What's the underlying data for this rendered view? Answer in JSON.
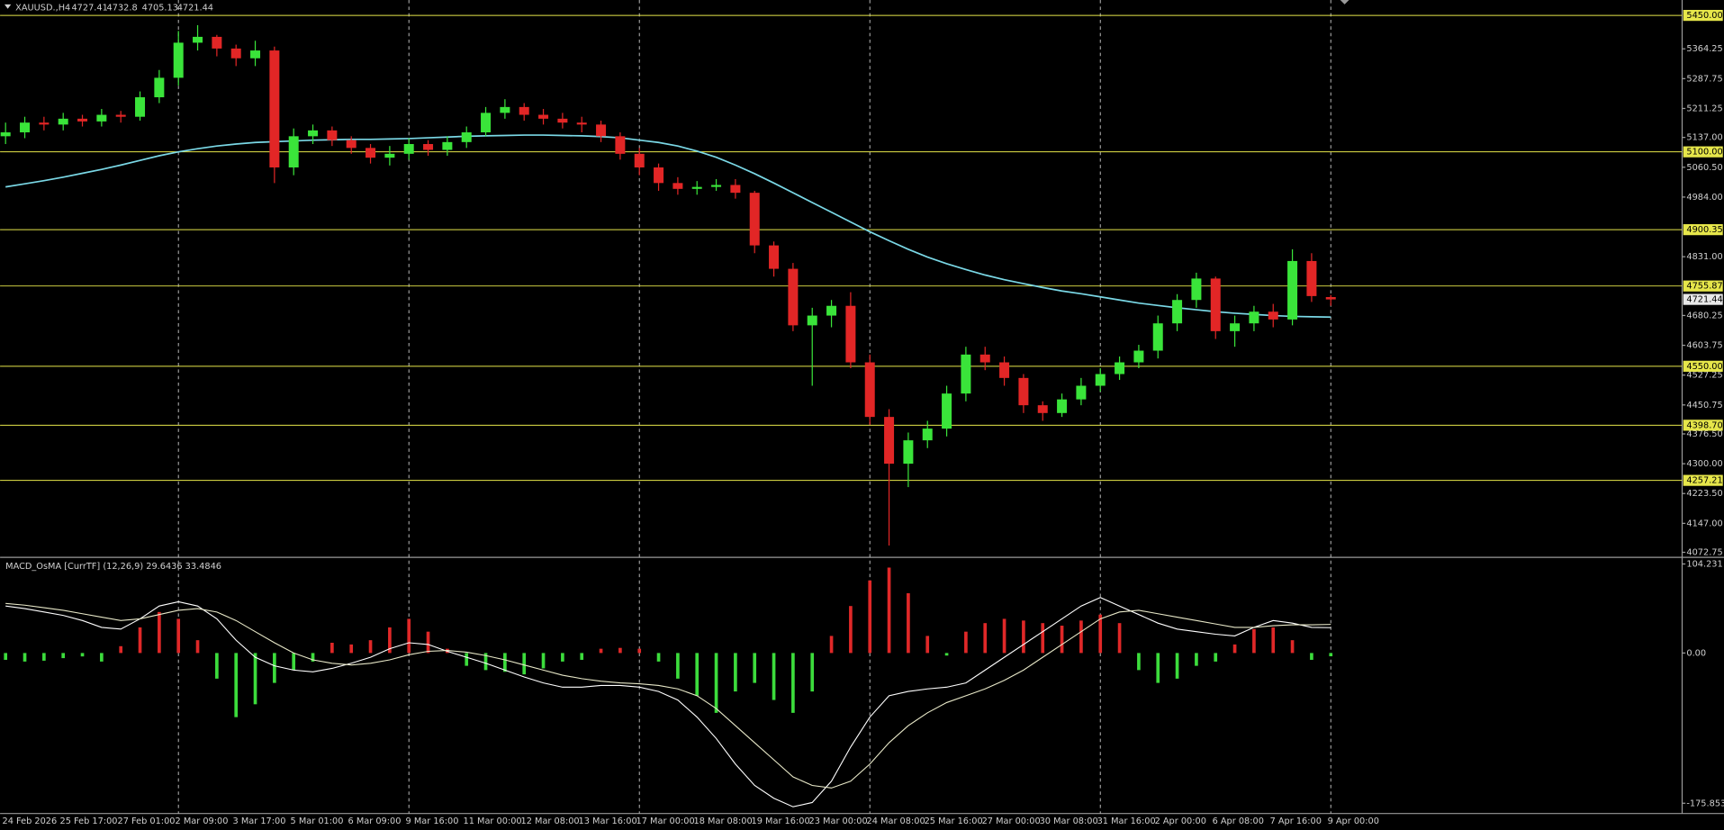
{
  "chart_data": [
    {
      "type": "candlestick",
      "title": "XAUUSD.,H4",
      "categories": [
        "24 Feb 2026",
        null,
        null,
        "25 Feb 17:00",
        null,
        null,
        "27 Feb 01:00",
        null,
        null,
        "2 Mar 09:00",
        null,
        null,
        "3 Mar 17:00",
        null,
        null,
        "5 Mar 01:00",
        null,
        null,
        "6 Mar 09:00",
        null,
        null,
        "9 Mar 16:00",
        null,
        null,
        "11 Mar 00:00",
        null,
        null,
        "12 Mar 08:00",
        null,
        null,
        "13 Mar 16:00",
        null,
        null,
        "17 Mar 00:00",
        null,
        null,
        "18 Mar 08:00",
        null,
        null,
        "19 Mar 16:00",
        null,
        null,
        "23 Mar 00:00",
        null,
        null,
        "24 Mar 08:00",
        null,
        null,
        "25 Mar 16:00",
        null,
        null,
        "27 Mar 00:00",
        null,
        null,
        "30 Mar 08:00",
        null,
        null,
        "31 Mar 16:00",
        null,
        null,
        "2 Apr 00:00",
        null,
        null,
        "6 Apr 08:00",
        null,
        null,
        "7 Apr 16:00",
        null,
        null,
        "9 Apr 00:00"
      ],
      "open": [
        5140,
        5150,
        5175,
        5170,
        5185,
        5178,
        5195,
        5190,
        5240,
        5290,
        5380,
        5395,
        5365,
        5340,
        5360,
        5060,
        5140,
        5155,
        5130,
        5110,
        5085,
        5095,
        5120,
        5105,
        5125,
        5150,
        5200,
        5215,
        5195,
        5185,
        5175,
        5170,
        5140,
        5095,
        5060,
        5020,
        5005,
        5010,
        5015,
        4995,
        4860,
        4800,
        4655,
        4680,
        4705,
        4560,
        4420,
        4300,
        4360,
        4390,
        4480,
        4580,
        4560,
        4520,
        4450,
        4430,
        4465,
        4500,
        4530,
        4560,
        4590,
        4660,
        4720,
        4775,
        4640,
        4660,
        4690,
        4670,
        4820,
        4727.41
      ],
      "high": [
        5175,
        5190,
        5190,
        5200,
        5195,
        5210,
        5205,
        5255,
        5310,
        5410,
        5425,
        5400,
        5375,
        5385,
        5370,
        5160,
        5170,
        5165,
        5140,
        5120,
        5115,
        5135,
        5130,
        5140,
        5165,
        5215,
        5235,
        5225,
        5210,
        5200,
        5190,
        5180,
        5150,
        5110,
        5070,
        5035,
        5025,
        5030,
        5030,
        5000,
        4870,
        4815,
        4700,
        4720,
        4740,
        4580,
        4440,
        4380,
        4410,
        4500,
        4600,
        4600,
        4575,
        4530,
        4460,
        4480,
        4520,
        4545,
        4575,
        4605,
        4680,
        4735,
        4790,
        4780,
        4680,
        4705,
        4710,
        4850,
        4840,
        4732.8
      ],
      "low": [
        5120,
        5135,
        5155,
        5155,
        5165,
        5165,
        5175,
        5180,
        5225,
        5270,
        5360,
        5345,
        5320,
        5320,
        5020,
        5040,
        5120,
        5115,
        5095,
        5070,
        5065,
        5080,
        5090,
        5090,
        5110,
        5140,
        5185,
        5180,
        5170,
        5160,
        5150,
        5125,
        5080,
        5040,
        5000,
        4990,
        4990,
        5000,
        4980,
        4840,
        4780,
        4640,
        4500,
        4650,
        4545,
        4400,
        4090,
        4240,
        4340,
        4370,
        4460,
        4540,
        4500,
        4430,
        4410,
        4420,
        4450,
        4485,
        4515,
        4545,
        4570,
        4640,
        4700,
        4620,
        4600,
        4640,
        4650,
        4655,
        4715,
        4705.13
      ],
      "close": [
        5150,
        5175,
        5170,
        5185,
        5178,
        5195,
        5190,
        5240,
        5290,
        5380,
        5395,
        5365,
        5340,
        5360,
        5060,
        5140,
        5155,
        5130,
        5110,
        5085,
        5095,
        5120,
        5105,
        5125,
        5150,
        5200,
        5215,
        5195,
        5185,
        5175,
        5170,
        5140,
        5095,
        5060,
        5020,
        5005,
        5010,
        5015,
        4995,
        4860,
        4800,
        4655,
        4680,
        4705,
        4560,
        4420,
        4300,
        4360,
        4390,
        4480,
        4580,
        4560,
        4520,
        4450,
        4430,
        4465,
        4500,
        4530,
        4560,
        4590,
        4660,
        4720,
        4775,
        4640,
        4660,
        4690,
        4670,
        4820,
        4730,
        4721.44
      ],
      "up_color": "#3ae43a",
      "down_color": "#e22626",
      "overlay": {
        "color": "#7ad8e6",
        "values": [
          5010,
          5018,
          5026,
          5035,
          5045,
          5055,
          5066,
          5078,
          5090,
          5100,
          5108,
          5115,
          5120,
          5124,
          5126,
          5128,
          5130,
          5131,
          5132,
          5132,
          5133,
          5134,
          5136,
          5138,
          5140,
          5141,
          5142,
          5143,
          5143,
          5142,
          5141,
          5139,
          5136,
          5130,
          5124,
          5115,
          5102,
          5086,
          5066,
          5044,
          5020,
          4995,
          4970,
          4945,
          4920,
          4895,
          4872,
          4850,
          4830,
          4813,
          4798,
          4784,
          4772,
          4762,
          4752,
          4743,
          4736,
          4728,
          4720,
          4712,
          4706,
          4700,
          4695,
          4690,
          4686,
          4683,
          4680,
          4678,
          4677,
          4676
        ]
      },
      "levels": [
        {
          "value": 5450,
          "label": "5450.00"
        },
        {
          "value": 5100,
          "label": "5100.00"
        },
        4900.35,
        4755.87,
        {
          "value": 4550,
          "label": "4550.00"
        },
        {
          "value": 4398.7,
          "label": "4398.70"
        },
        4257.21
      ],
      "level_color": "#e6e64a",
      "ylim": [
        4065.4,
        5489.5
      ],
      "yticks": [
        5364.25,
        5287.75,
        5211.25,
        {
          "value": 5137,
          "label": "5137.00"
        },
        {
          "value": 5060.5,
          "label": "5060.50"
        },
        {
          "value": 4984,
          "label": "4984.00"
        },
        {
          "value": 4831,
          "label": "4831.00"
        },
        4680.25,
        4603.75,
        4527.25,
        4450.75,
        {
          "value": 4376.5,
          "label": "4376.50"
        },
        {
          "value": 4300,
          "label": "4300.00"
        },
        {
          "value": 4223.5,
          "label": "4223.50"
        },
        {
          "value": 4147,
          "label": "4147.00"
        },
        4072.75
      ]
    },
    {
      "type": "macd",
      "title": "MACD_OsMA [CurrTF] (12,26,9) 29.6436 33.4846",
      "histogram": {
        "up_color": "#e02828",
        "down_color": "#3cdc3c",
        "values": [
          -8,
          -10,
          -9,
          -6,
          -4,
          -10,
          8,
          30,
          48,
          40,
          15,
          -30,
          -75,
          -60,
          -35,
          -20,
          -10,
          12,
          10,
          15,
          30,
          40,
          25,
          5,
          -15,
          -20,
          -22,
          -25,
          -18,
          -10,
          -8,
          5,
          6,
          5,
          -10,
          -30,
          -50,
          -70,
          -45,
          -35,
          -55,
          -70,
          -45,
          20,
          55,
          85,
          100,
          70,
          20,
          -3,
          25,
          35,
          40,
          38,
          35,
          32,
          38,
          45,
          35,
          -20,
          -35,
          -30,
          -15,
          -10,
          10,
          28,
          30,
          15,
          -8,
          -3.84
        ]
      },
      "lines": [
        {
          "color": "#ffffff",
          "values": [
            55,
            52,
            48,
            44,
            38,
            30,
            28,
            40,
            55,
            60,
            55,
            40,
            15,
            -5,
            -15,
            -20,
            -22,
            -18,
            -12,
            -5,
            5,
            12,
            10,
            2,
            -5,
            -12,
            -20,
            -28,
            -35,
            -40,
            -40,
            -38,
            -38,
            -40,
            -45,
            -55,
            -75,
            -100,
            -130,
            -155,
            -170,
            -180,
            -175,
            -150,
            -110,
            -75,
            -50,
            -45,
            -42,
            -40,
            -35,
            -20,
            -5,
            10,
            25,
            40,
            55,
            65,
            55,
            45,
            35,
            28,
            25,
            22,
            20,
            30,
            38,
            35,
            30,
            29.6436
          ]
        },
        {
          "color": "#e8e8c8",
          "values": [
            58,
            56,
            53,
            50,
            46,
            42,
            38,
            40,
            45,
            50,
            52,
            48,
            38,
            25,
            12,
            0,
            -8,
            -12,
            -14,
            -12,
            -8,
            -2,
            2,
            3,
            1,
            -3,
            -8,
            -14,
            -20,
            -26,
            -30,
            -33,
            -35,
            -36,
            -38,
            -42,
            -50,
            -65,
            -85,
            -105,
            -125,
            -145,
            -155,
            -158,
            -150,
            -130,
            -105,
            -85,
            -70,
            -58,
            -50,
            -42,
            -32,
            -20,
            -5,
            10,
            25,
            40,
            48,
            50,
            46,
            42,
            38,
            34,
            30,
            30,
            32,
            33,
            33,
            33.4846
          ]
        }
      ],
      "ylim": [
        -185.3,
        108.1
      ],
      "yticks": [
        104.231,
        {
          "value": 0,
          "label": "0.00"
        },
        -175.853
      ]
    }
  ]
}
